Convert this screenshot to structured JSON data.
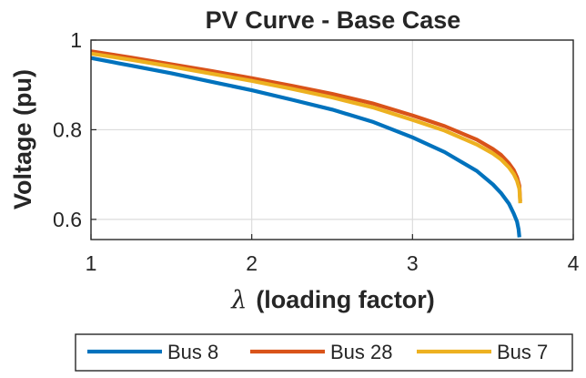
{
  "chart_data": {
    "type": "line",
    "title": "PV Curve - Base Case",
    "xlabel_symbol": "λ",
    "xlabel": "(loading factor)",
    "ylabel": "Voltage (pu)",
    "xlim": [
      1,
      4
    ],
    "ylim": [
      0.555,
      1.0
    ],
    "xticks": [
      1,
      2,
      3,
      4
    ],
    "xtick_labels": [
      "1",
      "2",
      "3",
      "4"
    ],
    "yticks": [
      0.6,
      0.8,
      1.0
    ],
    "ytick_labels": [
      "0.6",
      "0.8",
      "1"
    ],
    "grid": true,
    "legend_position": "bottom-outside",
    "series": [
      {
        "name": "Bus 8",
        "color": "#0072BD",
        "x": [
          1.0,
          1.25,
          1.5,
          1.75,
          2.0,
          2.25,
          2.5,
          2.75,
          3.0,
          3.2,
          3.4,
          3.5,
          3.55,
          3.6,
          3.63,
          3.65,
          3.66,
          3.665
        ],
        "y": [
          0.96,
          0.943,
          0.926,
          0.907,
          0.888,
          0.867,
          0.845,
          0.818,
          0.783,
          0.75,
          0.708,
          0.678,
          0.659,
          0.635,
          0.613,
          0.595,
          0.578,
          0.56
        ]
      },
      {
        "name": "Bus 28",
        "color": "#D95319",
        "x": [
          1.0,
          1.25,
          1.5,
          1.75,
          2.0,
          2.25,
          2.5,
          2.75,
          3.0,
          3.2,
          3.4,
          3.5,
          3.55,
          3.6,
          3.63,
          3.65,
          3.665,
          3.67
        ],
        "y": [
          0.975,
          0.961,
          0.946,
          0.931,
          0.915,
          0.898,
          0.88,
          0.859,
          0.832,
          0.808,
          0.778,
          0.757,
          0.744,
          0.725,
          0.71,
          0.694,
          0.675,
          0.64
        ]
      },
      {
        "name": "Bus 7",
        "color": "#EDB120",
        "x": [
          1.0,
          1.25,
          1.5,
          1.75,
          2.0,
          2.25,
          2.5,
          2.75,
          3.0,
          3.2,
          3.4,
          3.5,
          3.55,
          3.6,
          3.63,
          3.65,
          3.665,
          3.67
        ],
        "y": [
          0.97,
          0.956,
          0.941,
          0.925,
          0.909,
          0.891,
          0.872,
          0.85,
          0.822,
          0.798,
          0.767,
          0.747,
          0.734,
          0.716,
          0.701,
          0.686,
          0.668,
          0.636
        ]
      }
    ]
  }
}
